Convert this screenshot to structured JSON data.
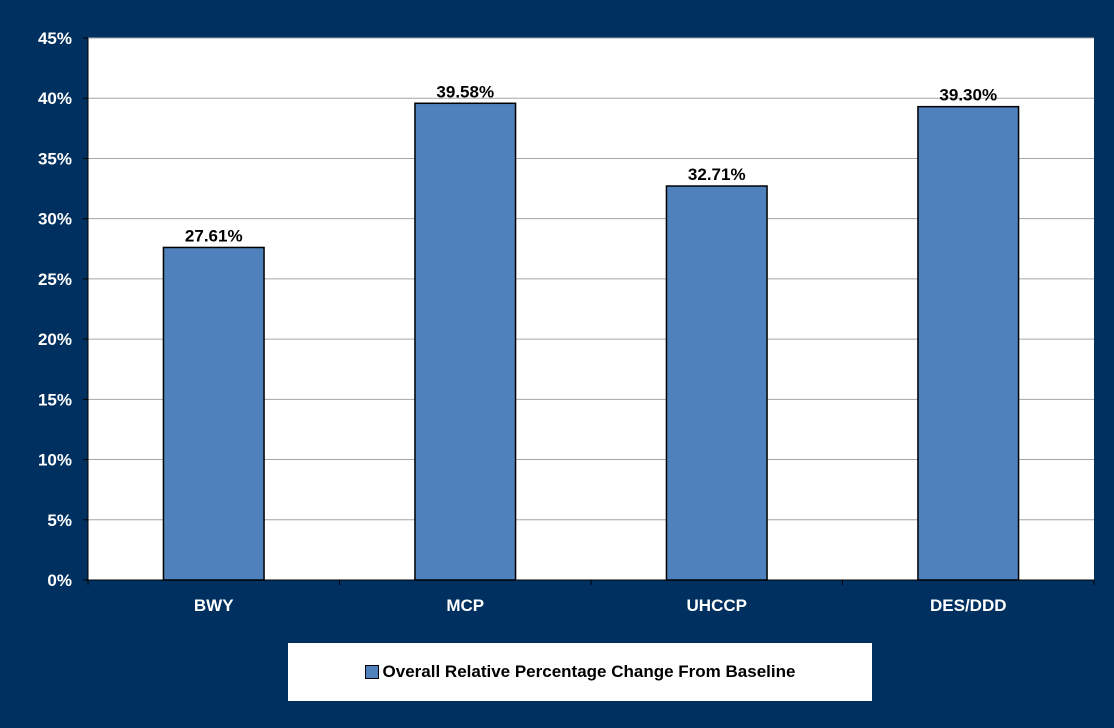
{
  "colors": {
    "background": "#00305f",
    "plot_area": "#ffffff",
    "bar_fill": "#4f81bd",
    "bar_border": "#000000",
    "gridline": "#a6a6a6",
    "axis_text": "#ffffff",
    "data_label_text": "#000000"
  },
  "chart_data": {
    "type": "bar",
    "categories": [
      "BWY",
      "MCP",
      "UHCCP",
      "DES/DDD"
    ],
    "series": [
      {
        "name": "Overall Relative Percentage Change From Baseline",
        "values": [
          27.61,
          39.58,
          32.71,
          39.3
        ],
        "data_labels": [
          "27.61%",
          "39.58%",
          "32.71%",
          "39.30%"
        ]
      }
    ],
    "ylim": [
      0,
      45
    ],
    "yticks": [
      0,
      5,
      10,
      15,
      20,
      25,
      30,
      35,
      40,
      45
    ],
    "ytick_labels": [
      "0%",
      "5%",
      "10%",
      "15%",
      "20%",
      "25%",
      "30%",
      "35%",
      "40%",
      "45%"
    ],
    "grid": true,
    "legend_position": "bottom",
    "title": "",
    "xlabel": "",
    "ylabel": ""
  }
}
